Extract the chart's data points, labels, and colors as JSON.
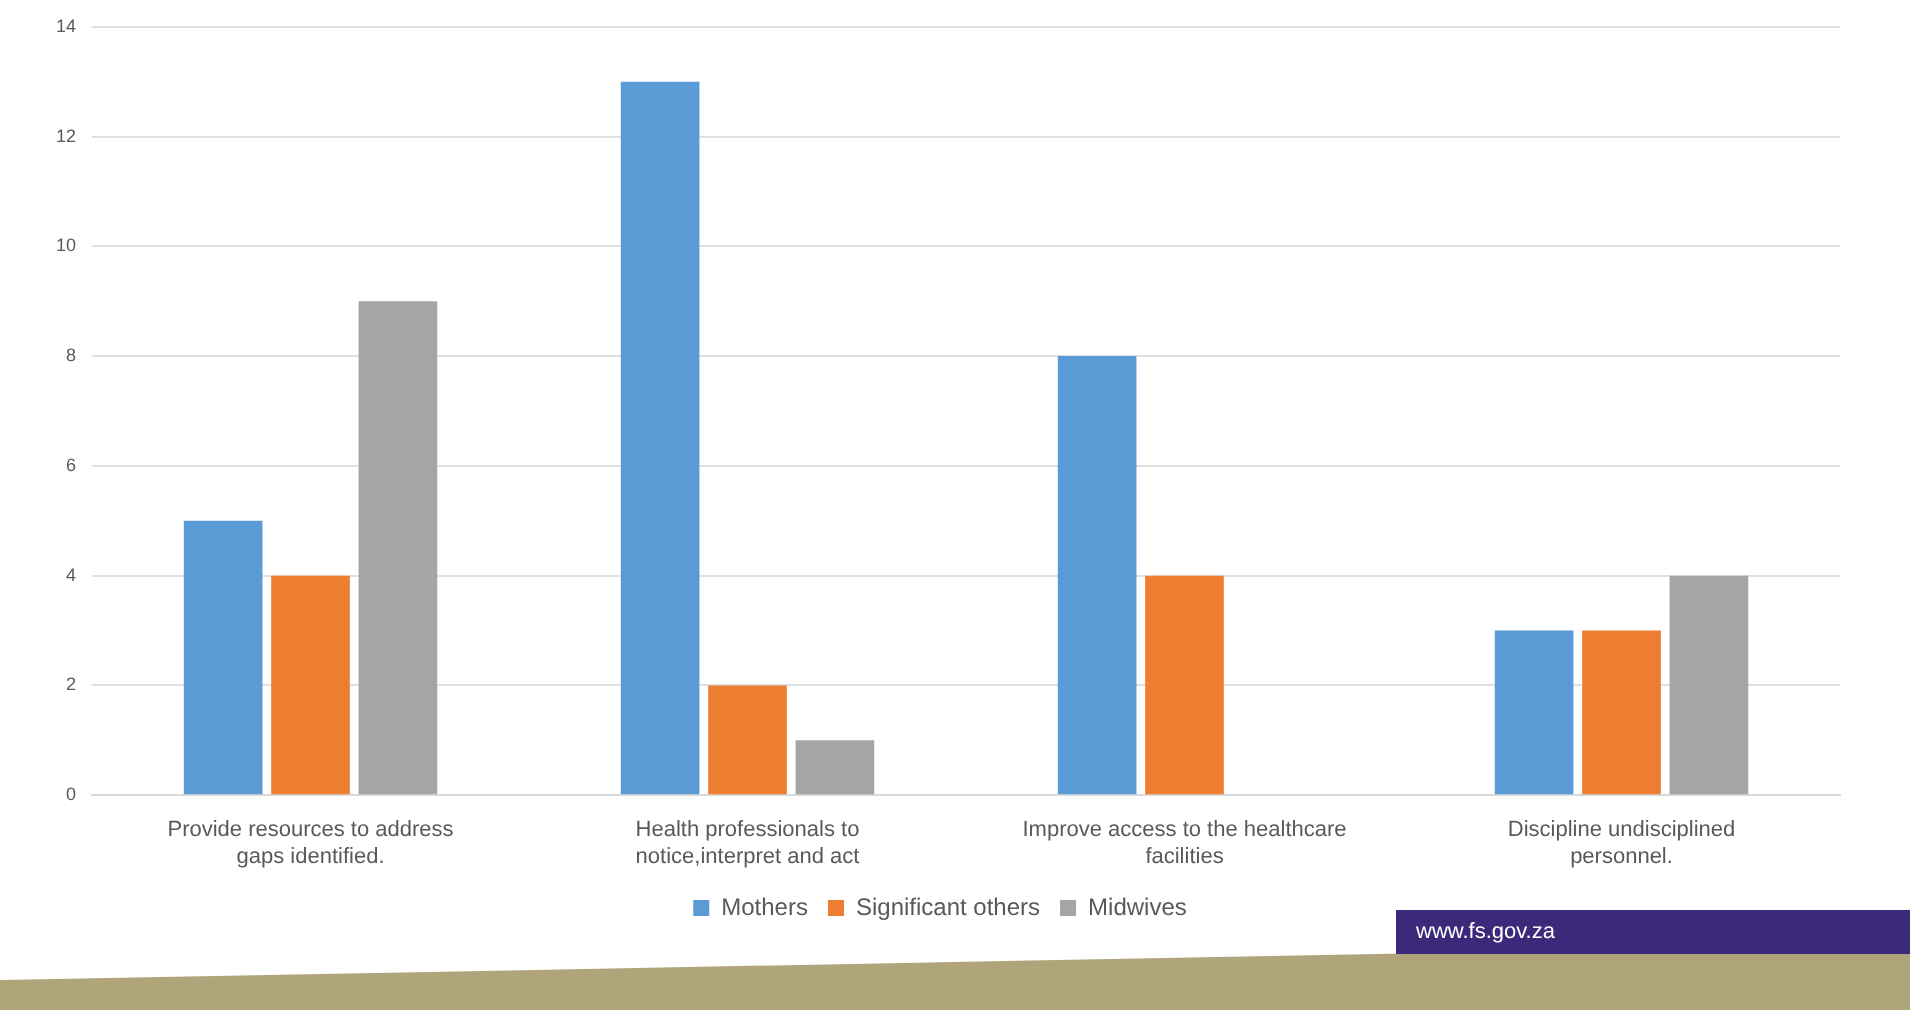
{
  "chart_data": {
    "type": "bar",
    "categories": [
      "Provide resources to address gaps identified.",
      "Health professionals to notice,interpret and act",
      "Improve access to the healthcare facilities",
      "Discipline undisciplined personnel."
    ],
    "series": [
      {
        "name": "Mothers",
        "color": "#5b9bd5",
        "values": [
          5,
          13,
          8,
          3
        ]
      },
      {
        "name": "Significant others",
        "color": "#ed7d31",
        "values": [
          4,
          2,
          4,
          3
        ]
      },
      {
        "name": "Midwives",
        "color": "#a5a5a5",
        "values": [
          9,
          1,
          0,
          4
        ]
      }
    ],
    "ylim": [
      0,
      14
    ],
    "yticks": [
      0,
      2,
      4,
      6,
      8,
      10,
      12,
      14
    ],
    "grid": "y",
    "legend": "bottom",
    "annotations": [
      "www.fs.gov.za"
    ]
  }
}
